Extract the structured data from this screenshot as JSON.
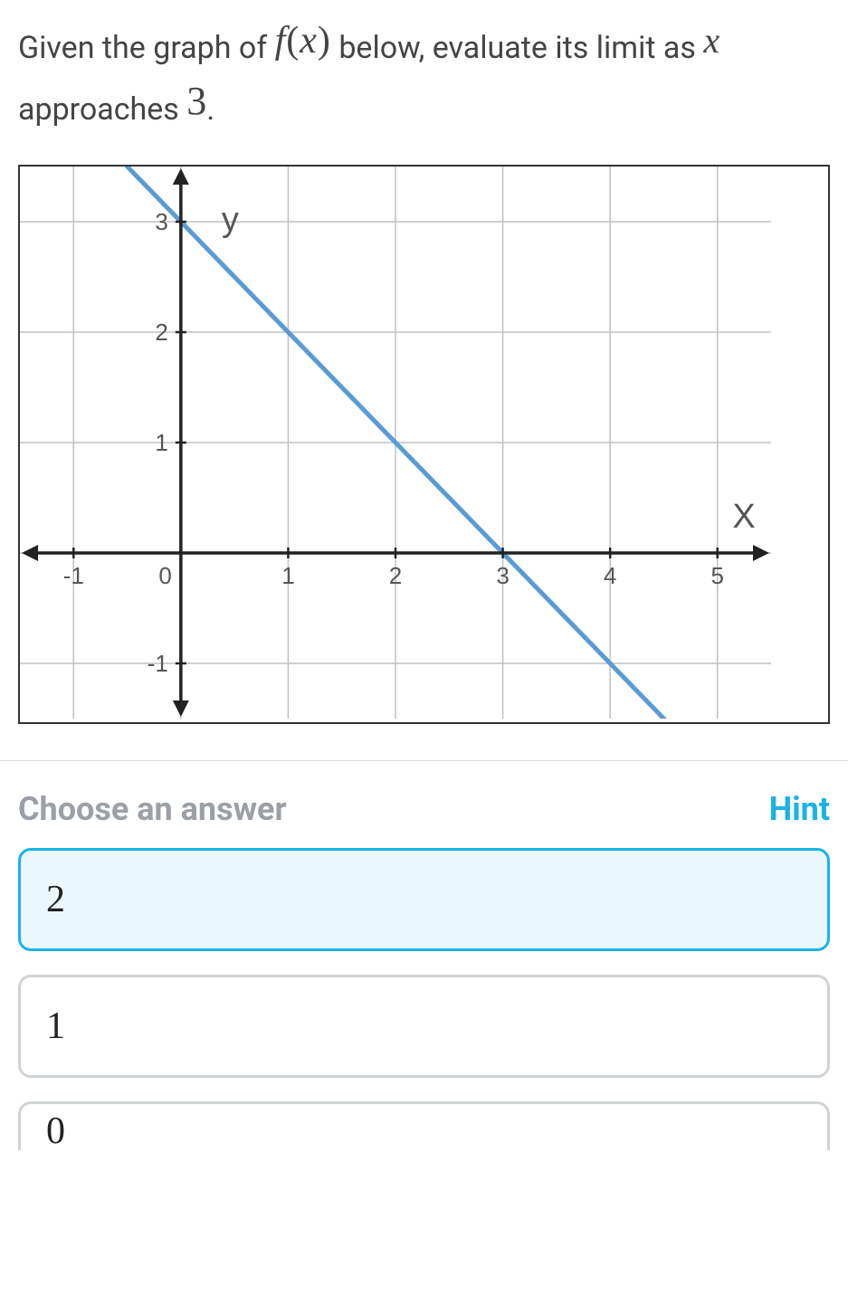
{
  "question": {
    "part1": "Given the graph of ",
    "fx": "f(x)",
    "part2": " below, evaluate its limit as ",
    "xvar": "x",
    "part3": "approaches ",
    "three": "3",
    "period": "."
  },
  "graph": {
    "width_units": 7,
    "height_units": 5,
    "x_min": -1.5,
    "x_max": 5.5,
    "y_min": -1.5,
    "y_max": 3.5,
    "x_ticks": [
      -1,
      0,
      1,
      2,
      3,
      4,
      5
    ],
    "y_ticks": [
      -1,
      1,
      2,
      3
    ],
    "x_tick_labels": [
      "-1",
      "0",
      "1",
      "2",
      "3",
      "4",
      "5"
    ],
    "y_tick_labels": [
      "-1",
      "1",
      "2",
      "3"
    ],
    "y_axis_x": 0,
    "x_axis_y": 0,
    "x_label": "X",
    "y_label": "y",
    "grid_color": "#c0c0c0",
    "axis_color": "#222222",
    "line_color": "#5a9bd5",
    "line_width": 5,
    "background": "#ffffff",
    "line_points": [
      {
        "x": -0.5,
        "y": 3.5
      },
      {
        "x": 5.0,
        "y": -2.0
      }
    ],
    "tick_fontsize": 26,
    "axis_label_fontsize": 38
  },
  "choose_label": "Choose an answer",
  "hint_label": "Hint",
  "answers": [
    {
      "value": "2",
      "selected": true
    },
    {
      "value": "1",
      "selected": false
    },
    {
      "value": "0",
      "selected": false
    }
  ]
}
